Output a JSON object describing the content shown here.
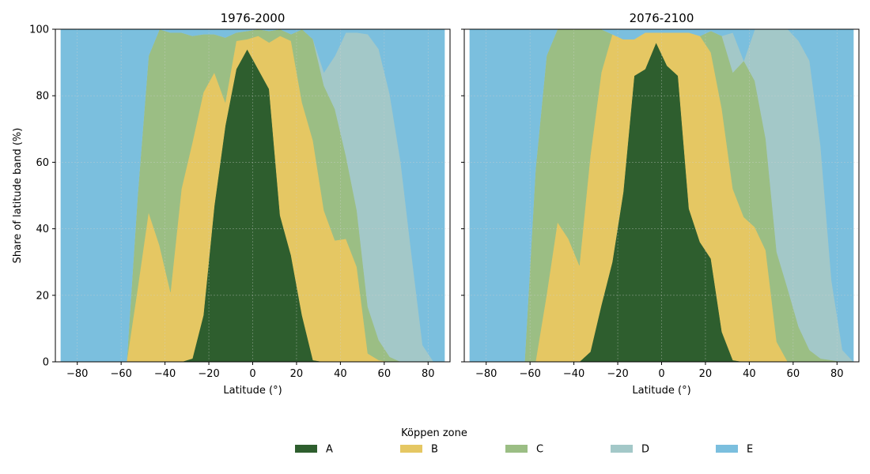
{
  "legend": {
    "title": "Köppen zone"
  },
  "chart_data": [
    {
      "type": "area",
      "stacked": true,
      "title": "1976-2000",
      "xlabel": "Latitude (°)",
      "ylabel": "Share of latitude band (%)",
      "xlim": [
        -90,
        90
      ],
      "ylim": [
        0,
        100
      ],
      "xticks": [
        -80,
        -60,
        -40,
        -20,
        0,
        20,
        40,
        60,
        80
      ],
      "yticks": [
        0,
        20,
        40,
        60,
        80,
        100
      ],
      "grid": true,
      "x": [
        -87.5,
        -82.5,
        -77.5,
        -72.5,
        -67.5,
        -62.5,
        -57.5,
        -52.5,
        -47.5,
        -42.5,
        -37.5,
        -32.5,
        -27.5,
        -22.5,
        -17.5,
        -12.5,
        -7.5,
        -2.5,
        2.5,
        7.5,
        12.5,
        17.5,
        22.5,
        27.5,
        32.5,
        37.5,
        42.5,
        47.5,
        52.5,
        57.5,
        62.5,
        67.5,
        72.5,
        77.5,
        82.5,
        87.5
      ],
      "series": [
        {
          "name": "A",
          "color": "#2e5e2e",
          "values": [
            0,
            0,
            0,
            0,
            0,
            0,
            0,
            0,
            0,
            0,
            0,
            0,
            1,
            14,
            47,
            71,
            88,
            94,
            88,
            82,
            44,
            32,
            14,
            0.5,
            0,
            0,
            0,
            0,
            0,
            0,
            0,
            0,
            0,
            0,
            0,
            0
          ]
        },
        {
          "name": "B",
          "color": "#e5c763",
          "values": [
            0,
            0,
            0,
            0,
            0,
            0,
            0,
            22,
            45,
            35,
            21,
            52,
            65,
            67,
            40,
            7,
            8.5,
            3,
            10,
            14,
            54,
            64.5,
            64,
            66,
            45.5,
            36.5,
            37,
            28.5,
            2.5,
            0.5,
            0,
            0,
            0,
            0,
            0,
            0
          ]
        },
        {
          "name": "C",
          "color": "#9bbe84",
          "values": [
            0,
            0,
            0,
            0,
            0,
            0,
            0,
            28,
            47,
            65,
            78,
            47,
            32,
            17.5,
            11.5,
            19.5,
            2.5,
            2.5,
            2,
            3.5,
            2,
            2,
            22,
            30.5,
            37.5,
            39.5,
            25,
            17,
            14,
            6,
            1.5,
            0,
            0,
            0,
            0,
            0
          ]
        },
        {
          "name": "D",
          "color": "#a3c8c8",
          "values": [
            0,
            0,
            0,
            0,
            0,
            0,
            0,
            0,
            0,
            0,
            0,
            0,
            0,
            0,
            0,
            0,
            0,
            0,
            0,
            0,
            0,
            0,
            0,
            0,
            4,
            16,
            37,
            53.5,
            82,
            87.5,
            79,
            60,
            32,
            5,
            0,
            0
          ]
        },
        {
          "name": "E",
          "color": "#7bbfde",
          "values": [
            100,
            100,
            100,
            100,
            100,
            100,
            100,
            50,
            8,
            0,
            1,
            1,
            2,
            1.5,
            1.5,
            2.5,
            1,
            0.5,
            0,
            0.5,
            0,
            1.5,
            0,
            3,
            13,
            8,
            1,
            1,
            1.5,
            6,
            19.5,
            40,
            68,
            95,
            100,
            100
          ]
        }
      ]
    },
    {
      "type": "area",
      "stacked": true,
      "title": "2076-2100",
      "xlabel": "Latitude (°)",
      "ylabel": "",
      "xlim": [
        -90,
        90
      ],
      "ylim": [
        0,
        100
      ],
      "xticks": [
        -80,
        -60,
        -40,
        -20,
        0,
        20,
        40,
        60,
        80
      ],
      "yticks": [
        0,
        20,
        40,
        60,
        80,
        100
      ],
      "grid": true,
      "x": [
        -87.5,
        -82.5,
        -77.5,
        -72.5,
        -67.5,
        -62.5,
        -57.5,
        -52.5,
        -47.5,
        -42.5,
        -37.5,
        -32.5,
        -27.5,
        -22.5,
        -17.5,
        -12.5,
        -7.5,
        -2.5,
        2.5,
        7.5,
        12.5,
        17.5,
        22.5,
        27.5,
        32.5,
        37.5,
        42.5,
        47.5,
        52.5,
        57.5,
        62.5,
        67.5,
        72.5,
        77.5,
        82.5,
        87.5
      ],
      "series": [
        {
          "name": "A",
          "color": "#2e5e2e",
          "values": [
            0,
            0,
            0,
            0,
            0,
            0,
            0,
            0,
            0,
            0,
            0,
            3,
            17,
            30,
            51,
            86,
            88,
            96,
            89,
            86,
            46,
            36,
            31,
            9,
            0.5,
            0,
            0,
            0,
            0,
            0,
            0,
            0,
            0,
            0,
            0,
            0
          ]
        },
        {
          "name": "B",
          "color": "#e5c763",
          "values": [
            0,
            0,
            0,
            0,
            0,
            0,
            0,
            20,
            42,
            37,
            29,
            59,
            70,
            68.5,
            46,
            11,
            11,
            3,
            10,
            13,
            53,
            62,
            62,
            67,
            51.5,
            43.5,
            40.5,
            33.5,
            6,
            0,
            0,
            0,
            0,
            0,
            0,
            0
          ]
        },
        {
          "name": "C",
          "color": "#9bbe84",
          "values": [
            0,
            0,
            0,
            0,
            0,
            0,
            58,
            72,
            58,
            63,
            71,
            38,
            13,
            0,
            0,
            0,
            0,
            0,
            0,
            0,
            0,
            0,
            6.5,
            22,
            35,
            47,
            44,
            33.5,
            27,
            22,
            10.5,
            3.5,
            1,
            0.5,
            0,
            0
          ]
        },
        {
          "name": "D",
          "color": "#a3c8c8",
          "values": [
            0,
            0,
            0,
            0,
            0,
            0,
            0,
            0,
            0,
            0,
            0,
            0,
            0,
            0,
            0,
            0,
            0,
            0,
            0,
            0,
            0,
            0,
            0,
            0,
            12,
            0,
            15.5,
            33,
            67,
            78,
            86,
            87,
            64,
            24,
            3.5,
            0
          ]
        },
        {
          "name": "E",
          "color": "#7bbfde",
          "values": [
            100,
            100,
            100,
            100,
            100,
            100,
            42,
            8,
            0,
            0,
            0,
            0,
            0,
            1.5,
            3,
            3,
            1,
            1,
            1,
            1,
            1,
            2,
            0.5,
            2,
            1,
            9.5,
            0,
            0,
            0,
            0,
            3.5,
            9.5,
            35,
            75.5,
            96.5,
            100
          ]
        }
      ]
    }
  ]
}
